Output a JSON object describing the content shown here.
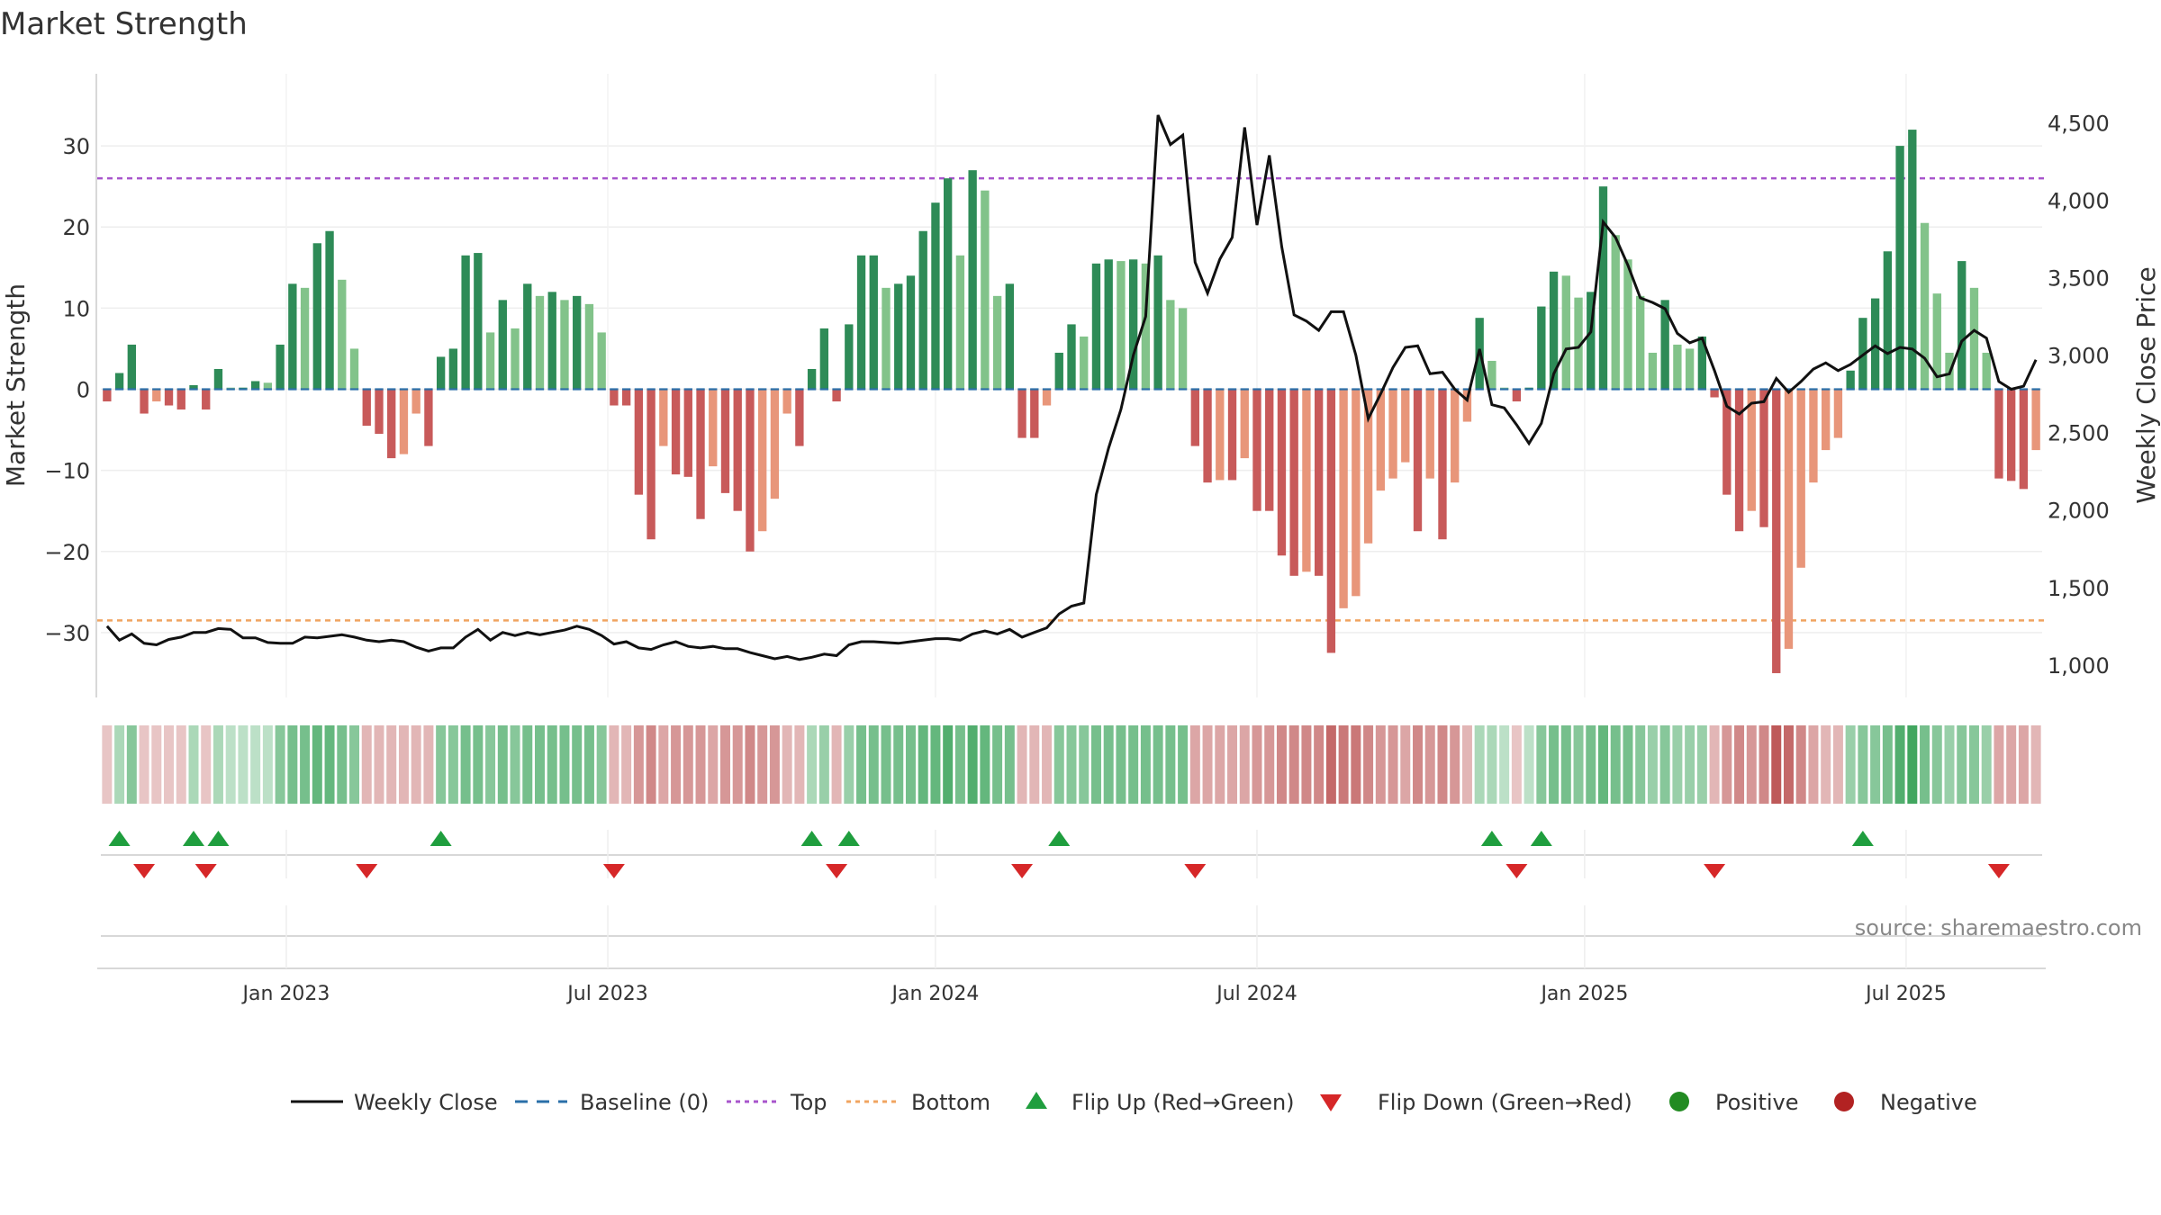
{
  "chart_data": {
    "type": "bar",
    "title": "Market Strength",
    "ylabel_left": "Market Strength",
    "ylabel_right": "Weekly Close Price",
    "source": "source: sharemaestro.com",
    "y_left_range": [
      -38,
      38
    ],
    "y_left_ticks": [
      -30,
      -20,
      -10,
      0,
      10,
      20,
      30
    ],
    "y_left_tick_labels": [
      "−30",
      "−20",
      "−10",
      "0",
      "10",
      "20",
      "30"
    ],
    "y_right_range": [
      790,
      4770
    ],
    "y_right_ticks": [
      1000,
      1500,
      2000,
      2500,
      3000,
      3500,
      4000,
      4500
    ],
    "y_right_tick_labels": [
      "1,000",
      "1,500",
      "2,000",
      "2,500",
      "3,000",
      "3,500",
      "4,000",
      "4,500"
    ],
    "x_week_range": [
      0,
      157
    ],
    "x_ticks": [
      {
        "label": "Jan 2023",
        "week": 15
      },
      {
        "label": "Jul 2023",
        "week": 41
      },
      {
        "label": "Jan 2024",
        "week": 67.5
      },
      {
        "label": "Jul 2024",
        "week": 93.5
      },
      {
        "label": "Jan 2025",
        "week": 120
      },
      {
        "label": "Jul 2025",
        "week": 146
      }
    ],
    "top_line": 26,
    "bottom_line": -28.5,
    "strength": [
      -1.5,
      2,
      5.5,
      -3,
      -1.5,
      -2,
      -2.5,
      0.5,
      -2.5,
      2.5,
      0.2,
      0.2,
      1,
      0.8,
      5.5,
      13,
      12.5,
      18,
      19.5,
      13.5,
      5,
      -4.5,
      -5.5,
      -8.5,
      -8,
      -3,
      -7,
      4,
      5,
      16.5,
      16.8,
      7,
      11,
      7.5,
      13,
      11.5,
      12,
      11,
      11.5,
      10.5,
      7,
      -2,
      -2,
      -13,
      -18.5,
      -7,
      -10.5,
      -10.8,
      -16,
      -9.5,
      -12.8,
      -15,
      -20,
      -17.5,
      -13.5,
      -3,
      -7,
      2.5,
      7.5,
      -1.5,
      8,
      16.5,
      16.5,
      12.5,
      13,
      14,
      19.5,
      23,
      26,
      16.5,
      27,
      24.5,
      11.5,
      13,
      -6,
      -6,
      -2,
      4.5,
      8,
      6.5,
      15.5,
      16,
      15.8,
      16,
      15.5,
      16.5,
      11,
      10,
      -7,
      -11.5,
      -11.2,
      -11.2,
      -8.5,
      -15,
      -15,
      -20.5,
      -23,
      -22.5,
      -23,
      -32.5,
      -27,
      -25.5,
      -19,
      -12.5,
      -11,
      -9,
      -17.5,
      -11,
      -18.5,
      -11.5,
      -4,
      8.8,
      3.5,
      0.2,
      -1.5,
      0.2,
      10.2,
      14.5,
      14,
      11.3,
      12,
      25,
      19,
      16,
      11.5,
      4.5,
      11,
      5.5,
      5,
      6.5,
      -1,
      -13,
      -17.5,
      -15,
      -17,
      -35,
      -32,
      -22,
      -11.5,
      -7.5,
      -6,
      2.3,
      8.8,
      11.2,
      17,
      30,
      32,
      20.5,
      11.8,
      4.5,
      15.8,
      12.5,
      4.5,
      -11,
      -11.3,
      -12.3,
      -7.5
    ],
    "weekly_close": [
      1250,
      1160,
      1200,
      1140,
      1130,
      1165,
      1180,
      1210,
      1210,
      1235,
      1230,
      1175,
      1175,
      1145,
      1140,
      1140,
      1180,
      1175,
      1185,
      1195,
      1180,
      1160,
      1150,
      1160,
      1150,
      1115,
      1090,
      1110,
      1110,
      1180,
      1230,
      1160,
      1210,
      1190,
      1210,
      1195,
      1210,
      1225,
      1250,
      1230,
      1190,
      1135,
      1150,
      1110,
      1100,
      1130,
      1150,
      1120,
      1110,
      1120,
      1105,
      1105,
      1080,
      1060,
      1040,
      1055,
      1035,
      1050,
      1070,
      1060,
      1130,
      1150,
      1150,
      1145,
      1140,
      1150,
      1160,
      1170,
      1170,
      1160,
      1200,
      1220,
      1200,
      1230,
      1180,
      1210,
      1240,
      1330,
      1380,
      1400,
      2100,
      2400,
      2650,
      3000,
      3250,
      4550,
      4360,
      4420,
      3600,
      3400,
      3620,
      3760,
      4470,
      3840,
      4290,
      3700,
      3260,
      3220,
      3160,
      3280,
      3280,
      3000,
      2590,
      2750,
      2920,
      3050,
      3060,
      2880,
      2890,
      2780,
      2710,
      3040,
      2680,
      2660,
      2550,
      2430,
      2560,
      2880,
      3040,
      3050,
      3150,
      3860,
      3760,
      3580,
      3370,
      3340,
      3300,
      3140,
      3080,
      3110,
      2900,
      2670,
      2620,
      2690,
      2700,
      2850,
      2760,
      2830,
      2910,
      2950,
      2900,
      2940,
      3000,
      3060,
      3010,
      3050,
      3040,
      2980,
      2860,
      2880,
      3090,
      3160,
      3110,
      2830,
      2780,
      2800,
      2970
    ],
    "heat_values": [
      -0.2,
      0.3,
      0.5,
      -0.2,
      -0.2,
      -0.2,
      -0.2,
      0.3,
      -0.2,
      0.3,
      0.2,
      0.2,
      0.2,
      0.2,
      0.5,
      0.6,
      0.6,
      0.7,
      0.7,
      0.6,
      0.5,
      -0.3,
      -0.3,
      -0.3,
      -0.3,
      -0.3,
      -0.3,
      0.5,
      0.5,
      0.6,
      0.6,
      0.5,
      0.6,
      0.5,
      0.6,
      0.6,
      0.6,
      0.6,
      0.6,
      0.6,
      0.5,
      -0.3,
      -0.3,
      -0.5,
      -0.6,
      -0.4,
      -0.5,
      -0.5,
      -0.5,
      -0.4,
      -0.5,
      -0.5,
      -0.6,
      -0.5,
      -0.5,
      -0.3,
      -0.3,
      0.3,
      0.4,
      -0.3,
      0.4,
      0.6,
      0.6,
      0.6,
      0.6,
      0.6,
      0.7,
      0.7,
      0.8,
      0.6,
      0.8,
      0.7,
      0.6,
      0.6,
      -0.3,
      -0.3,
      -0.3,
      0.5,
      0.5,
      0.5,
      0.6,
      0.6,
      0.6,
      0.6,
      0.6,
      0.6,
      0.6,
      0.6,
      -0.4,
      -0.4,
      -0.4,
      -0.4,
      -0.4,
      -0.5,
      -0.5,
      -0.6,
      -0.6,
      -0.6,
      -0.6,
      -0.8,
      -0.7,
      -0.7,
      -0.6,
      -0.5,
      -0.5,
      -0.4,
      -0.6,
      -0.5,
      -0.6,
      -0.5,
      -0.3,
      0.3,
      0.3,
      0.2,
      -0.2,
      0.2,
      0.5,
      0.6,
      0.6,
      0.5,
      0.6,
      0.7,
      0.6,
      0.6,
      0.5,
      0.4,
      0.5,
      0.4,
      0.4,
      0.4,
      -0.3,
      -0.5,
      -0.6,
      -0.5,
      -0.6,
      -0.9,
      -0.8,
      -0.6,
      -0.4,
      -0.3,
      -0.3,
      0.4,
      0.5,
      0.5,
      0.6,
      0.8,
      0.9,
      0.6,
      0.5,
      0.4,
      0.5,
      0.5,
      0.4,
      -0.4,
      -0.4,
      -0.4,
      -0.3
    ],
    "flip_up_weeks": [
      1,
      7,
      9,
      27,
      57,
      60,
      77,
      112,
      116,
      142
    ],
    "flip_down_weeks": [
      3,
      8,
      21,
      41,
      59,
      74,
      88,
      114,
      130,
      153
    ],
    "colors": {
      "pos_strong": "#2e8b57",
      "pos_light": "#82c38a",
      "neg_strong": "#c85a5a",
      "neg_light": "#e8967a",
      "close": "#111111",
      "baseline": "#2a6fa8",
      "top": "#a855cc",
      "bottom": "#f0a460",
      "flip_up": "#1f9e3e",
      "flip_down": "#d62728",
      "positive": "#228b22",
      "negative": "#b22222"
    },
    "legend": [
      {
        "key": "close",
        "label": "Weekly Close"
      },
      {
        "key": "baseline",
        "label": "Baseline (0)"
      },
      {
        "key": "top",
        "label": "Top"
      },
      {
        "key": "bottom",
        "label": "Bottom"
      },
      {
        "key": "flip_up",
        "label": "Flip Up (Red→Green)"
      },
      {
        "key": "flip_down",
        "label": "Flip Down (Green→Red)"
      },
      {
        "key": "positive",
        "label": "Positive"
      },
      {
        "key": "negative",
        "label": "Negative"
      }
    ]
  }
}
